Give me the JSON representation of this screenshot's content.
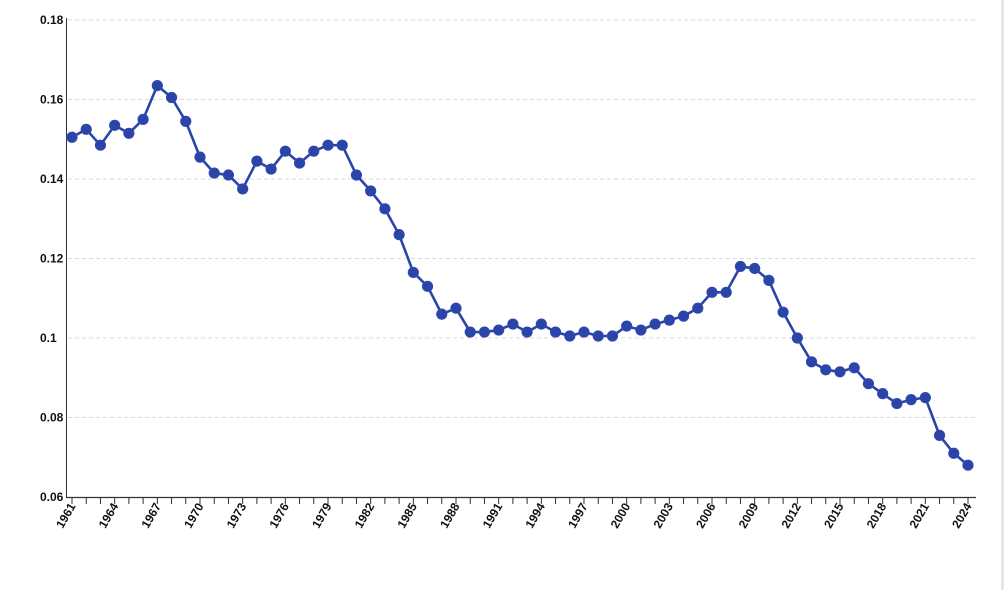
{
  "chart_data": {
    "type": "line",
    "title": "",
    "xlabel": "",
    "ylabel": "",
    "xlim": [
      1961,
      2024
    ],
    "ylim": [
      0.06,
      0.18
    ],
    "yticks": [
      0.06,
      0.08,
      0.1,
      0.12,
      0.14,
      0.16,
      0.18
    ],
    "ytick_labels": [
      "0.06",
      "0.08",
      "0.1",
      "0.12",
      "0.14",
      "0.16",
      "0.18"
    ],
    "xtick_labels": [
      "1961",
      "1964",
      "1967",
      "1970",
      "1973",
      "1976",
      "1979",
      "1982",
      "1985",
      "1988",
      "1991",
      "1994",
      "1997",
      "2000",
      "2003",
      "2006",
      "2009",
      "2012",
      "2015",
      "2018",
      "2021",
      "2024"
    ],
    "grid": true,
    "legend": "none",
    "colors": {
      "line": "#2b44a8",
      "marker": "#2b44a8",
      "grid": "#d9d9d9",
      "axis": "#333333"
    },
    "series": [
      {
        "x": [
          1961,
          1962,
          1963,
          1964,
          1965,
          1966,
          1967,
          1968,
          1969,
          1970,
          1971,
          1972,
          1973,
          1974,
          1975,
          1976,
          1977,
          1978,
          1979,
          1980,
          1981,
          1982,
          1983,
          1984,
          1985,
          1986,
          1987,
          1988,
          1989,
          1990,
          1991,
          1992,
          1993,
          1994,
          1995,
          1996,
          1997,
          1998,
          1999,
          2000,
          2001,
          2002,
          2003,
          2004,
          2005,
          2006,
          2007,
          2008,
          2009,
          2010,
          2011,
          2012,
          2013,
          2014,
          2015,
          2016,
          2017,
          2018,
          2019,
          2020,
          2021,
          2022,
          2023,
          2024
        ],
        "values": [
          0.1505,
          0.1525,
          0.1485,
          0.1535,
          0.1515,
          0.155,
          0.1635,
          0.1605,
          0.1545,
          0.1455,
          0.1415,
          0.141,
          0.1375,
          0.1445,
          0.1425,
          0.147,
          0.144,
          0.147,
          0.1485,
          0.1485,
          0.141,
          0.137,
          0.1325,
          0.126,
          0.1165,
          0.113,
          0.106,
          0.1075,
          0.1015,
          0.1015,
          0.102,
          0.1035,
          0.1015,
          0.1035,
          0.1015,
          0.1005,
          0.1015,
          0.1005,
          0.1005,
          0.103,
          0.102,
          0.1035,
          0.1045,
          0.1055,
          0.1075,
          0.1115,
          0.1115,
          0.118,
          0.1175,
          0.1145,
          0.1065,
          0.1,
          0.094,
          0.092,
          0.0915,
          0.0925,
          0.0885,
          0.086,
          0.0835,
          0.0845,
          0.085,
          0.0755,
          0.071,
          0.068
        ]
      }
    ]
  }
}
